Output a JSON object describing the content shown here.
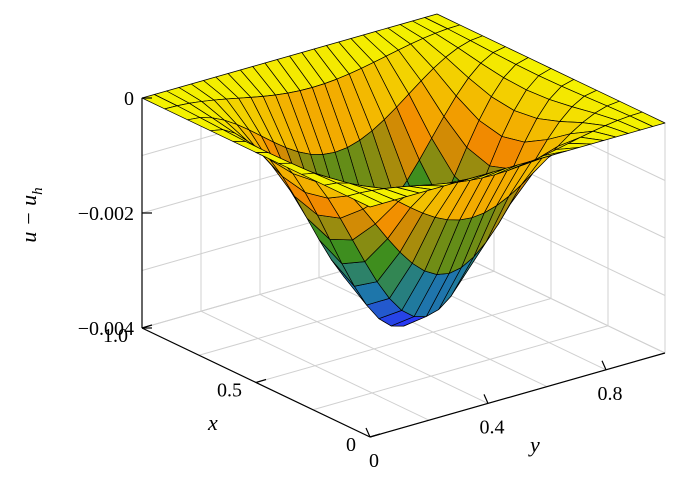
{
  "chart_data": {
    "type": "surface",
    "title": "",
    "xlabel": "x",
    "ylabel": "y",
    "zlabel_main": "u − u",
    "zlabel_sub": "h",
    "xlim": [
      0,
      1
    ],
    "ylim": [
      0,
      1
    ],
    "zlim": [
      -0.004,
      0
    ],
    "x_ticks": [
      {
        "value": 0,
        "label": "0"
      },
      {
        "value": 0.5,
        "label": "0.5"
      },
      {
        "value": 1,
        "label": "1.0"
      }
    ],
    "y_ticks": [
      {
        "value": 0,
        "label": "0"
      },
      {
        "value": 0.4,
        "label": "0.4"
      },
      {
        "value": 0.8,
        "label": "0.8"
      }
    ],
    "z_ticks": [
      {
        "value": 0,
        "label": "0"
      },
      {
        "value": -0.002,
        "label": "−0.002"
      },
      {
        "value": -0.004,
        "label": "−0.004"
      }
    ],
    "grid": true,
    "surface": {
      "formula": "z = -0.00375 * sin(pi*x)^2 * sin(pi*y)^2",
      "min_value": -0.00375,
      "mesh_x": 10,
      "mesh_y": 24
    },
    "colors": {
      "band_top": "#f4f200",
      "band_upper": "#f28a00",
      "band_mid": "#3e8e1e",
      "band_lower": "#1e78a8",
      "band_bottom": "#2a30ff",
      "grid": "#d0d0d0",
      "axis": "#000000"
    }
  }
}
